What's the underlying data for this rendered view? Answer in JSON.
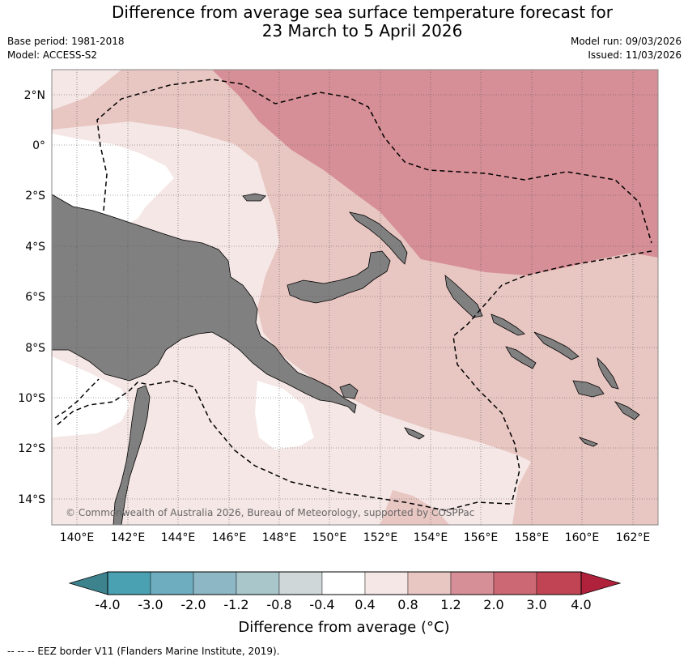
{
  "header": {
    "title_line1": "Difference from average sea surface temperature forecast for",
    "title_line2": "23 March to 5 April 2026",
    "base_period": "Base period: 1981-2018",
    "model": "Model: ACCESS-S2",
    "model_run": "Model run: 09/03/2026",
    "issued": "Issued: 11/03/2026"
  },
  "map": {
    "region": "Papua New Guinea and western Solomon Islands",
    "lat_labels": [
      "2°N",
      "0°",
      "2°S",
      "4°S",
      "6°S",
      "8°S",
      "10°S",
      "12°S",
      "14°S"
    ],
    "lon_labels": [
      "140°E",
      "142°E",
      "144°E",
      "146°E",
      "148°E",
      "150°E",
      "152°E",
      "154°E",
      "156°E",
      "158°E",
      "160°E",
      "162°E"
    ],
    "copyright": "© Commonwealth of Australia 2026, Bureau of Meteorology, supported by COSPPac",
    "land_color": "#808080"
  },
  "colorbar": {
    "title": "Difference from average (°C)",
    "bins": [
      {
        "range": "< -4.0",
        "color": "#3d838e"
      },
      {
        "range": "-4.0 to -3.0",
        "color": "#4aa1b2"
      },
      {
        "range": "-3.0 to -2.0",
        "color": "#6eadbf"
      },
      {
        "range": "-2.0 to -1.2",
        "color": "#8db7c4"
      },
      {
        "range": "-1.2 to -0.8",
        "color": "#a9c6cb"
      },
      {
        "range": "-0.8 to -0.4",
        "color": "#cfd7d9"
      },
      {
        "range": "-0.4 to 0.4",
        "color": "#ffffff"
      },
      {
        "range": "0.4 to 0.8",
        "color": "#f5e7e5"
      },
      {
        "range": "0.8 to 1.2",
        "color": "#e8c6c2"
      },
      {
        "range": "1.2 to 2.0",
        "color": "#d68f96"
      },
      {
        "range": "2.0 to 3.0",
        "color": "#cb6873"
      },
      {
        "range": "3.0 to 4.0",
        "color": "#c14454"
      },
      {
        "range": "> 4.0",
        "color": "#b0213b"
      }
    ],
    "tick_labels": [
      "-4.0",
      "-3.0",
      "-2.0",
      "-1.2",
      "-0.8",
      "-0.4",
      "0.4",
      "0.8",
      "1.2",
      "2.0",
      "3.0",
      "4.0"
    ]
  },
  "footnote": "--  --  -- EEZ border V11 (Flanders Marine Institute, 2019)."
}
